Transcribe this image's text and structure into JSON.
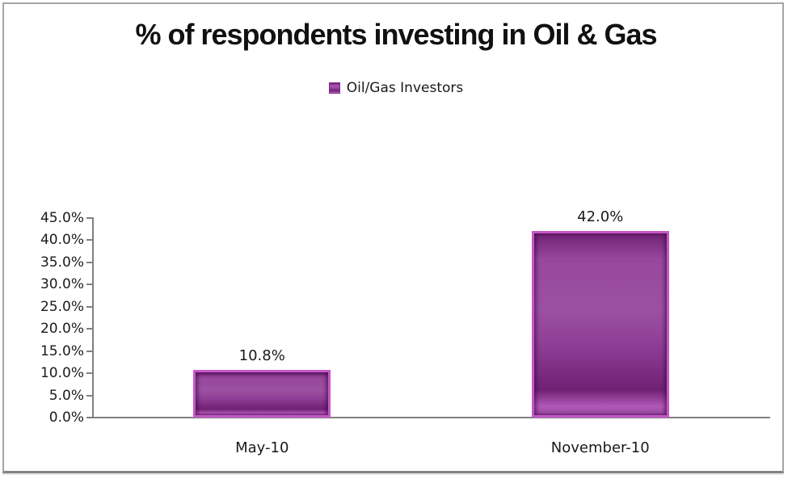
{
  "chart": {
    "title": "% of respondents investing in Oil & Gas",
    "legend": {
      "label": "Oil/Gas Investors"
    }
  },
  "chart_data": {
    "type": "bar",
    "title": "% of respondents investing in Oil & Gas",
    "categories": [
      "May-10",
      "November-10"
    ],
    "series": [
      {
        "name": "Oil/Gas Investors",
        "values": [
          10.8,
          42.0
        ]
      }
    ],
    "value_labels": [
      "10.8%",
      "42.0%"
    ],
    "y_ticks": [
      "0.0%",
      "5.0%",
      "10.0%",
      "15.0%",
      "20.0%",
      "25.0%",
      "30.0%",
      "35.0%",
      "40.0%",
      "45.0%"
    ],
    "ylim": [
      0,
      45
    ],
    "xlabel": "",
    "ylabel": "",
    "grid": false,
    "legend_position": "top-center",
    "colors": {
      "bar_fill": "#8e3d96",
      "bar_highlight": "#c757c8",
      "bar_shadow": "#6f2173",
      "axis_line": "#808080",
      "text": "#1a1a1a",
      "frame_border": "#a6a6a6"
    }
  }
}
